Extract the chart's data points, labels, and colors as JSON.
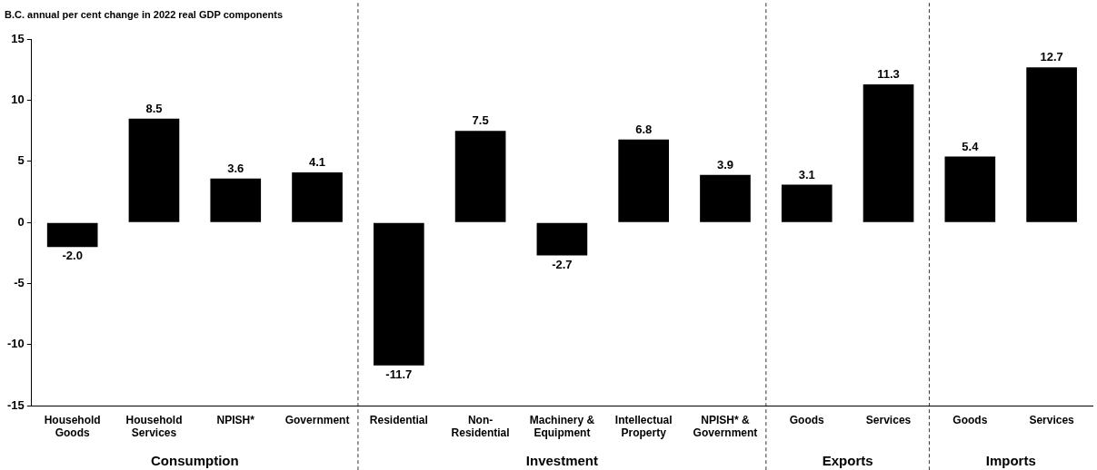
{
  "chart_data": {
    "type": "bar",
    "title": "B.C. annual per cent change in 2022 real GDP components",
    "categories": [
      "Household\nGoods",
      "Household\nServices",
      "NPISH*",
      "Government",
      "Residential",
      "Non-\nResidential",
      "Machinery &\nEquipment",
      "Intellectual\nProperty",
      "NPISH* &\nGovernment",
      "Goods",
      "Services",
      "Goods",
      "Services"
    ],
    "values": [
      -2.0,
      8.5,
      3.6,
      4.1,
      -11.7,
      7.5,
      -2.7,
      6.8,
      3.9,
      3.1,
      11.3,
      5.4,
      12.7
    ],
    "value_labels": [
      "-2.0",
      "8.5",
      "3.6",
      "4.1",
      "-11.7",
      "7.5",
      "-2.7",
      "6.8",
      "3.9",
      "3.1",
      "11.3",
      "5.4",
      "12.7"
    ],
    "color": "#000000",
    "ylim": [
      -15,
      15
    ],
    "yticks": [
      -15,
      -10,
      -5,
      0,
      5,
      10,
      15
    ],
    "grid": false,
    "legend": false,
    "annotations": [
      "Consumption",
      "Investment",
      "Exports",
      "Imports"
    ]
  }
}
